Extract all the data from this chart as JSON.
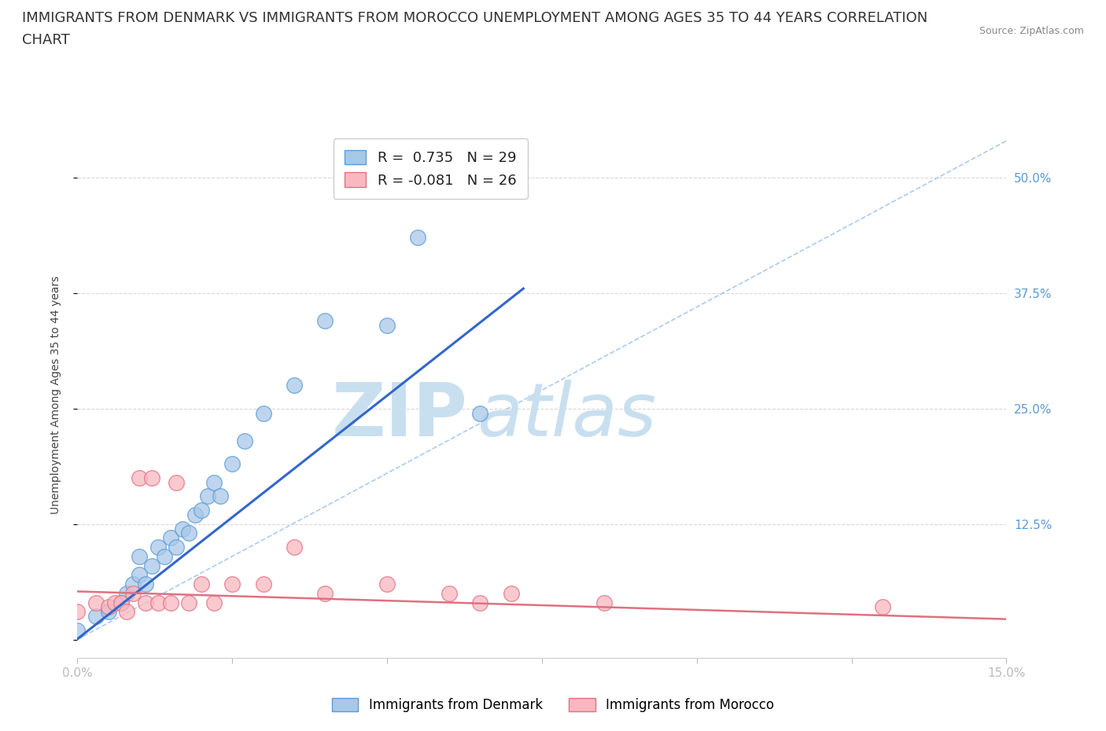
{
  "title_line1": "IMMIGRANTS FROM DENMARK VS IMMIGRANTS FROM MOROCCO UNEMPLOYMENT AMONG AGES 35 TO 44 YEARS CORRELATION",
  "title_line2": "CHART",
  "source": "Source: ZipAtlas.com",
  "ylabel": "Unemployment Among Ages 35 to 44 years",
  "xlim": [
    0.0,
    0.15
  ],
  "ylim": [
    -0.02,
    0.55
  ],
  "yticks": [
    0.0,
    0.125,
    0.25,
    0.375,
    0.5
  ],
  "ytick_labels_right": [
    "",
    "12.5%",
    "25.0%",
    "37.5%",
    "50.0%"
  ],
  "xticks": [
    0.0,
    0.025,
    0.05,
    0.075,
    0.1,
    0.125,
    0.15
  ],
  "xtick_labels": [
    "0.0%",
    "",
    "",
    "",
    "",
    "",
    "15.0%"
  ],
  "legend_r1": "R =  0.735   N = 29",
  "legend_r2": "R = -0.081   N = 26",
  "denmark_color": "#a8c8e8",
  "denmark_edge": "#5b9bd5",
  "morocco_color": "#f9b8c0",
  "morocco_edge": "#e07080",
  "denmark_scatter_x": [
    0.0,
    0.003,
    0.005,
    0.007,
    0.008,
    0.009,
    0.01,
    0.01,
    0.011,
    0.012,
    0.013,
    0.014,
    0.015,
    0.016,
    0.017,
    0.018,
    0.019,
    0.02,
    0.021,
    0.022,
    0.023,
    0.025,
    0.027,
    0.03,
    0.035,
    0.04,
    0.05,
    0.055,
    0.065
  ],
  "denmark_scatter_y": [
    0.01,
    0.025,
    0.03,
    0.04,
    0.05,
    0.06,
    0.07,
    0.09,
    0.06,
    0.08,
    0.1,
    0.09,
    0.11,
    0.1,
    0.12,
    0.115,
    0.135,
    0.14,
    0.155,
    0.17,
    0.155,
    0.19,
    0.215,
    0.245,
    0.275,
    0.345,
    0.34,
    0.435,
    0.245
  ],
  "morocco_scatter_x": [
    0.0,
    0.003,
    0.005,
    0.006,
    0.007,
    0.008,
    0.009,
    0.01,
    0.011,
    0.012,
    0.013,
    0.015,
    0.016,
    0.018,
    0.02,
    0.022,
    0.025,
    0.03,
    0.035,
    0.04,
    0.05,
    0.06,
    0.065,
    0.07,
    0.085,
    0.13
  ],
  "morocco_scatter_y": [
    0.03,
    0.04,
    0.035,
    0.04,
    0.04,
    0.03,
    0.05,
    0.175,
    0.04,
    0.175,
    0.04,
    0.04,
    0.17,
    0.04,
    0.06,
    0.04,
    0.06,
    0.06,
    0.1,
    0.05,
    0.06,
    0.05,
    0.04,
    0.05,
    0.04,
    0.035
  ],
  "watermark_zip": "ZIP",
  "watermark_atlas": "atlas",
  "watermark_color": "#c8dff0",
  "background_color": "#ffffff",
  "grid_color": "#d8d8d8",
  "title_fontsize": 13,
  "axis_label_fontsize": 10,
  "tick_label_fontsize": 11,
  "tick_color": "#5b9bd5",
  "denmark_trend_x": [
    -0.002,
    0.072
  ],
  "denmark_trend_y": [
    -0.01,
    0.38
  ],
  "morocco_trend_x": [
    0.0,
    0.15
  ],
  "morocco_trend_y": [
    0.052,
    0.022
  ],
  "ref_line_x": [
    0.0,
    0.15
  ],
  "ref_line_y": [
    0.0,
    0.54
  ]
}
